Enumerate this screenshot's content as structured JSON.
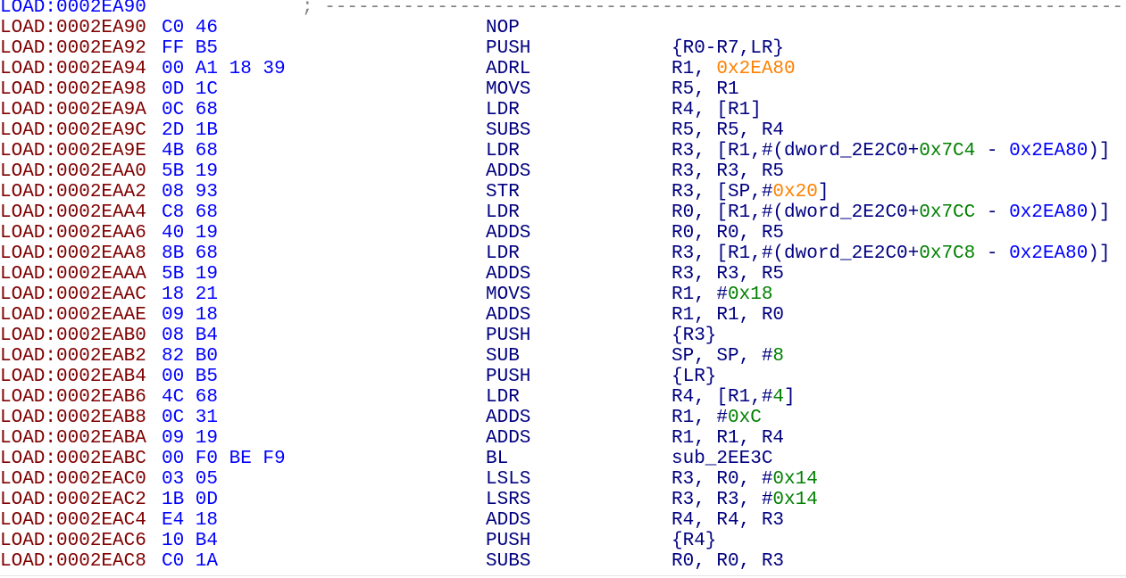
{
  "colors": {
    "segment": "#800000",
    "segment_current": "#0000ff",
    "bytes": "#0000ff",
    "mnemonic": "#000080",
    "reg": "#000080",
    "num": "#008000",
    "addr": "#ff8000",
    "name": "#0000ff",
    "comment": "#808080"
  },
  "header_line": {
    "address": "LOAD:0002EA90",
    "comment": "; -----------------------------------------------------------------------"
  },
  "lines": [
    {
      "address": "LOAD:0002EA90",
      "bytes": "C0 46",
      "mnemonic": "NOP",
      "operands": []
    },
    {
      "address": "LOAD:0002EA92",
      "bytes": "FF B5",
      "mnemonic": "PUSH",
      "operands": [
        {
          "t": "{R0-R7,LR}",
          "c": "reg"
        }
      ]
    },
    {
      "address": "LOAD:0002EA94",
      "bytes": "00 A1 18 39",
      "mnemonic": "ADRL",
      "operands": [
        {
          "t": "R1, ",
          "c": "reg"
        },
        {
          "t": "0x2EA80",
          "c": "addr"
        }
      ]
    },
    {
      "address": "LOAD:0002EA98",
      "bytes": "0D 1C",
      "mnemonic": "MOVS",
      "operands": [
        {
          "t": "R5, R1",
          "c": "reg"
        }
      ]
    },
    {
      "address": "LOAD:0002EA9A",
      "bytes": "0C 68",
      "mnemonic": "LDR",
      "operands": [
        {
          "t": "R4, [R1]",
          "c": "reg"
        }
      ]
    },
    {
      "address": "LOAD:0002EA9C",
      "bytes": "2D 1B",
      "mnemonic": "SUBS",
      "operands": [
        {
          "t": "R5, R5, R4",
          "c": "reg"
        }
      ]
    },
    {
      "address": "LOAD:0002EA9E",
      "bytes": "4B 68",
      "mnemonic": "LDR",
      "operands": [
        {
          "t": "R3, [R1,#(dword_2E2C0+",
          "c": "reg"
        },
        {
          "t": "0x7C4",
          "c": "num"
        },
        {
          "t": " - ",
          "c": "reg"
        },
        {
          "t": "0x2EA80",
          "c": "name"
        },
        {
          "t": ")]",
          "c": "reg"
        }
      ]
    },
    {
      "address": "LOAD:0002EAA0",
      "bytes": "5B 19",
      "mnemonic": "ADDS",
      "operands": [
        {
          "t": "R3, R3, R5",
          "c": "reg"
        }
      ]
    },
    {
      "address": "LOAD:0002EAA2",
      "bytes": "08 93",
      "mnemonic": "STR",
      "operands": [
        {
          "t": "R3, [SP,#",
          "c": "reg"
        },
        {
          "t": "0x20",
          "c": "addr"
        },
        {
          "t": "]",
          "c": "reg"
        }
      ]
    },
    {
      "address": "LOAD:0002EAA4",
      "bytes": "C8 68",
      "mnemonic": "LDR",
      "operands": [
        {
          "t": "R0, [R1,#(dword_2E2C0+",
          "c": "reg"
        },
        {
          "t": "0x7CC",
          "c": "num"
        },
        {
          "t": " - ",
          "c": "reg"
        },
        {
          "t": "0x2EA80",
          "c": "name"
        },
        {
          "t": ")]",
          "c": "reg"
        }
      ]
    },
    {
      "address": "LOAD:0002EAA6",
      "bytes": "40 19",
      "mnemonic": "ADDS",
      "operands": [
        {
          "t": "R0, R0, R5",
          "c": "reg"
        }
      ]
    },
    {
      "address": "LOAD:0002EAA8",
      "bytes": "8B 68",
      "mnemonic": "LDR",
      "operands": [
        {
          "t": "R3, [R1,#(dword_2E2C0+",
          "c": "reg"
        },
        {
          "t": "0x7C8",
          "c": "num"
        },
        {
          "t": " - ",
          "c": "reg"
        },
        {
          "t": "0x2EA80",
          "c": "name"
        },
        {
          "t": ")]",
          "c": "reg"
        }
      ]
    },
    {
      "address": "LOAD:0002EAAA",
      "bytes": "5B 19",
      "mnemonic": "ADDS",
      "operands": [
        {
          "t": "R3, R3, R5",
          "c": "reg"
        }
      ]
    },
    {
      "address": "LOAD:0002EAAC",
      "bytes": "18 21",
      "mnemonic": "MOVS",
      "operands": [
        {
          "t": "R1, #",
          "c": "reg"
        },
        {
          "t": "0x18",
          "c": "num"
        }
      ]
    },
    {
      "address": "LOAD:0002EAAE",
      "bytes": "09 18",
      "mnemonic": "ADDS",
      "operands": [
        {
          "t": "R1, R1, R0",
          "c": "reg"
        }
      ]
    },
    {
      "address": "LOAD:0002EAB0",
      "bytes": "08 B4",
      "mnemonic": "PUSH",
      "operands": [
        {
          "t": "{R3}",
          "c": "reg"
        }
      ]
    },
    {
      "address": "LOAD:0002EAB2",
      "bytes": "82 B0",
      "mnemonic": "SUB",
      "operands": [
        {
          "t": "SP, SP, #",
          "c": "reg"
        },
        {
          "t": "8",
          "c": "num"
        }
      ]
    },
    {
      "address": "LOAD:0002EAB4",
      "bytes": "00 B5",
      "mnemonic": "PUSH",
      "operands": [
        {
          "t": "{LR}",
          "c": "reg"
        }
      ]
    },
    {
      "address": "LOAD:0002EAB6",
      "bytes": "4C 68",
      "mnemonic": "LDR",
      "operands": [
        {
          "t": "R4, [R1,#",
          "c": "reg"
        },
        {
          "t": "4",
          "c": "num"
        },
        {
          "t": "]",
          "c": "reg"
        }
      ]
    },
    {
      "address": "LOAD:0002EAB8",
      "bytes": "0C 31",
      "mnemonic": "ADDS",
      "operands": [
        {
          "t": "R1, #",
          "c": "reg"
        },
        {
          "t": "0xC",
          "c": "num"
        }
      ]
    },
    {
      "address": "LOAD:0002EABA",
      "bytes": "09 19",
      "mnemonic": "ADDS",
      "operands": [
        {
          "t": "R1, R1, R4",
          "c": "reg"
        }
      ]
    },
    {
      "address": "LOAD:0002EABC",
      "bytes": "00 F0 BE F9",
      "mnemonic": "BL",
      "operands": [
        {
          "t": "sub_2EE3C",
          "c": "reg"
        }
      ]
    },
    {
      "address": "LOAD:0002EAC0",
      "bytes": "03 05",
      "mnemonic": "LSLS",
      "operands": [
        {
          "t": "R3, R0, #",
          "c": "reg"
        },
        {
          "t": "0x14",
          "c": "num"
        }
      ]
    },
    {
      "address": "LOAD:0002EAC2",
      "bytes": "1B 0D",
      "mnemonic": "LSRS",
      "operands": [
        {
          "t": "R3, R3, #",
          "c": "reg"
        },
        {
          "t": "0x14",
          "c": "num"
        }
      ]
    },
    {
      "address": "LOAD:0002EAC4",
      "bytes": "E4 18",
      "mnemonic": "ADDS",
      "operands": [
        {
          "t": "R4, R4, R3",
          "c": "reg"
        }
      ]
    },
    {
      "address": "LOAD:0002EAC6",
      "bytes": "10 B4",
      "mnemonic": "PUSH",
      "operands": [
        {
          "t": "{R4}",
          "c": "reg"
        }
      ]
    },
    {
      "address": "LOAD:0002EAC8",
      "bytes": "C0 1A",
      "mnemonic": "SUBS",
      "operands": [
        {
          "t": "R0, R0, R3",
          "c": "reg"
        }
      ]
    }
  ]
}
